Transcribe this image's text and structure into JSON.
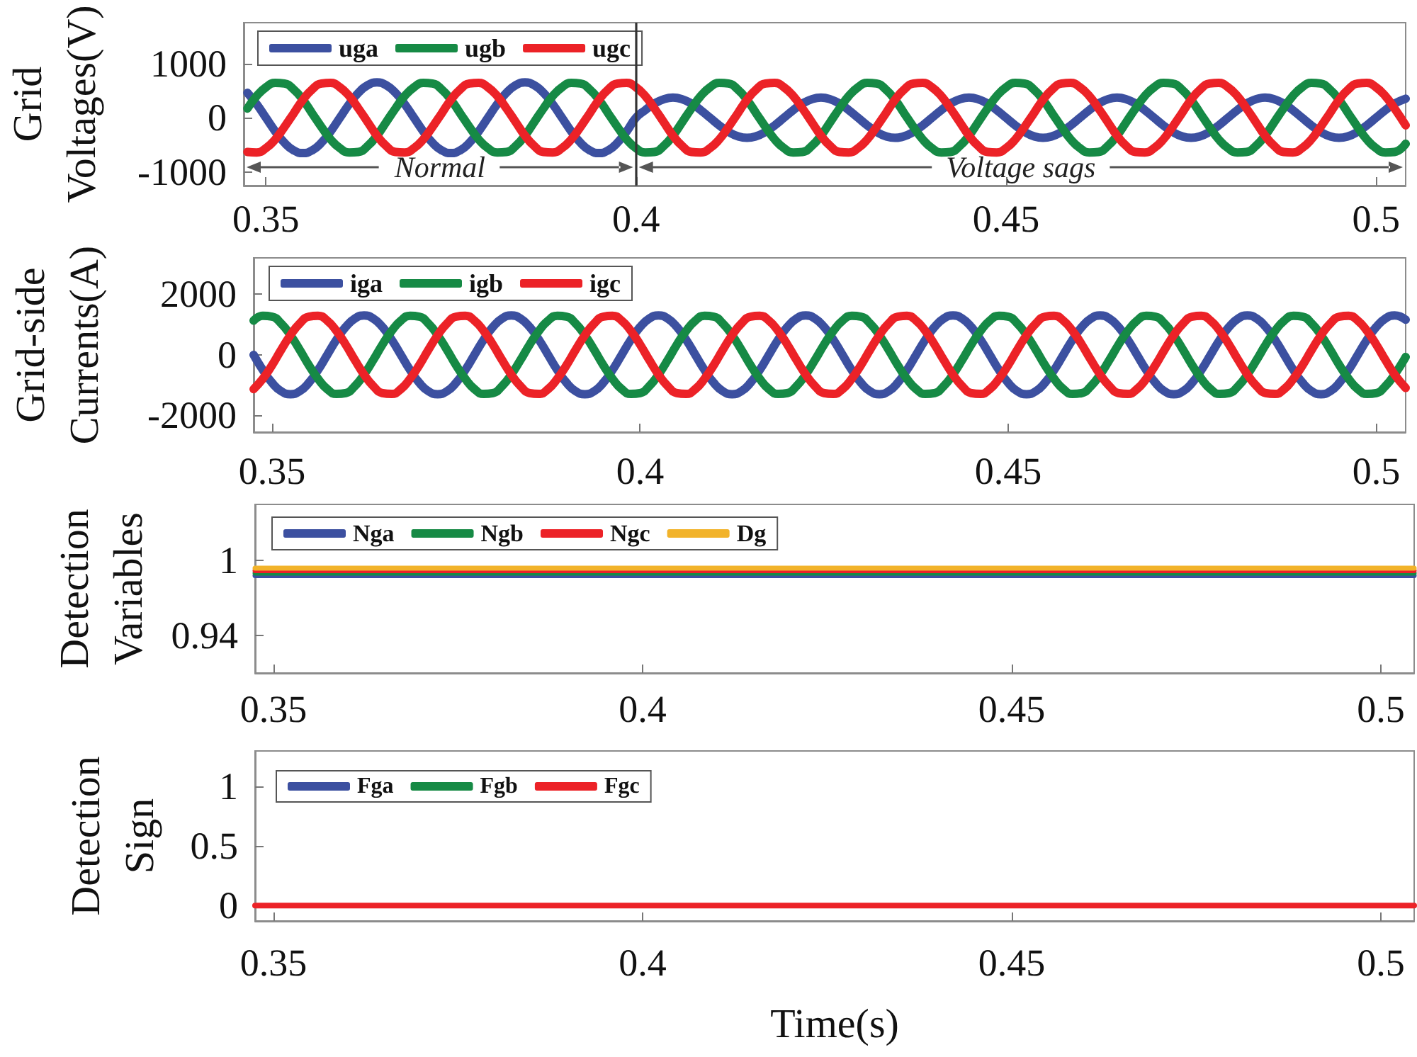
{
  "chart_data": [
    {
      "type": "line",
      "ylabel": "Grid Voltages(V)",
      "legend": "top left",
      "grid": false,
      "marker": "none",
      "line_style": "solid",
      "xlim": [
        0.347,
        0.504
      ],
      "xticks": [
        0.35,
        0.4,
        0.45,
        0.5
      ],
      "ylim": [
        -1250,
        1750
      ],
      "yticks": [
        -1000,
        0,
        1000
      ],
      "ref_lines": [
        {
          "axis": "x",
          "value": 0.4,
          "color": "#333333"
        }
      ],
      "annotations": [
        "Normal",
        "Voltage sags"
      ],
      "x": [
        0.3475,
        0.34875,
        0.35,
        0.35125,
        0.3525,
        0.35375,
        0.355,
        0.35625,
        0.3575,
        0.35875,
        0.36,
        0.36125,
        0.3625,
        0.36375,
        0.365,
        0.36625,
        0.3675,
        0.36875,
        0.37,
        0.37125,
        0.3725,
        0.37375,
        0.375,
        0.37625,
        0.3775,
        0.37875,
        0.38,
        0.38125,
        0.3825,
        0.38375,
        0.385,
        0.38625,
        0.3875,
        0.38875,
        0.39,
        0.39125,
        0.3925,
        0.39375,
        0.395,
        0.39625,
        0.3975,
        0.39875,
        0.4,
        0.40125,
        0.4025,
        0.40375,
        0.405,
        0.40625,
        0.4075,
        0.40875,
        0.41,
        0.41125,
        0.4125,
        0.41375,
        0.415,
        0.41625,
        0.4175,
        0.41875,
        0.42,
        0.42125,
        0.4225,
        0.42375,
        0.425,
        0.42625,
        0.4275,
        0.42875,
        0.43,
        0.43125,
        0.4325,
        0.43375,
        0.435,
        0.43625,
        0.4375,
        0.43875,
        0.44,
        0.44125,
        0.4425,
        0.44375,
        0.445,
        0.44625,
        0.4475,
        0.44875,
        0.45,
        0.45125,
        0.4525,
        0.45375,
        0.455,
        0.45625,
        0.4575,
        0.45875,
        0.46,
        0.46125,
        0.4625,
        0.46375,
        0.465,
        0.46625,
        0.4675,
        0.46875,
        0.47,
        0.47125,
        0.4725,
        0.47375,
        0.475,
        0.47625,
        0.4775,
        0.47875,
        0.48,
        0.48125,
        0.4825,
        0.48375,
        0.485,
        0.48625,
        0.4875,
        0.48875,
        0.49,
        0.49125,
        0.4925,
        0.49375,
        0.495,
        0.49625,
        0.4975,
        0.49875,
        0.5,
        0.50125,
        0.5025,
        0.504
      ],
      "series": [
        {
          "name": "uga",
          "color": "#3c50a0",
          "values": [
            460,
            250,
            0,
            -250,
            -460,
            -600,
            -650,
            -600,
            -460,
            -250,
            0,
            250,
            460,
            600,
            650,
            600,
            460,
            250,
            0,
            -250,
            -460,
            -600,
            -650,
            -600,
            -460,
            -250,
            0,
            250,
            460,
            600,
            650,
            600,
            460,
            250,
            0,
            -250,
            -460,
            -600,
            -650,
            -600,
            -460,
            -250,
            0,
            140,
            260,
            340,
            370,
            340,
            260,
            140,
            0,
            -140,
            -260,
            -340,
            -370,
            -340,
            -260,
            -140,
            0,
            140,
            260,
            340,
            370,
            340,
            260,
            140,
            0,
            -140,
            -260,
            -340,
            -370,
            -340,
            -260,
            -140,
            0,
            140,
            260,
            340,
            370,
            340,
            260,
            140,
            0,
            -140,
            -260,
            -340,
            -370,
            -340,
            -260,
            -140,
            0,
            140,
            260,
            340,
            370,
            340,
            260,
            140,
            0,
            -140,
            -260,
            -340,
            -370,
            -340,
            -260,
            -140,
            0,
            140,
            260,
            340,
            370,
            340,
            260,
            140,
            0,
            -140,
            -260,
            -340,
            -370,
            -340,
            -260,
            -140,
            0,
            140,
            260,
            350
          ]
        },
        {
          "name": "ugb",
          "color": "#168a45",
          "values": [
            170,
            400,
            560,
            640,
            630,
            520,
            330,
            80,
            -170,
            -400,
            -560,
            -640,
            -630,
            -520,
            -330,
            -80,
            170,
            400,
            560,
            640,
            630,
            520,
            330,
            80,
            -170,
            -400,
            -560,
            -640,
            -630,
            -520,
            -330,
            -80,
            170,
            400,
            560,
            640,
            630,
            520,
            330,
            80,
            -170,
            -400,
            -560,
            -640,
            -630,
            -520,
            -330,
            -80,
            170,
            400,
            560,
            640,
            630,
            520,
            330,
            80,
            -170,
            -400,
            -560,
            -640,
            -630,
            -520,
            -330,
            -80,
            170,
            400,
            560,
            640,
            630,
            520,
            330,
            80,
            -170,
            -400,
            -560,
            -640,
            -630,
            -520,
            -330,
            -80,
            170,
            400,
            560,
            640,
            630,
            520,
            330,
            80,
            -170,
            -400,
            -560,
            -640,
            -630,
            -520,
            -330,
            -80,
            170,
            400,
            560,
            640,
            630,
            520,
            330,
            80,
            -170,
            -400,
            -560,
            -640,
            -630,
            -520,
            -330,
            -80,
            170,
            400,
            560,
            640,
            630,
            520,
            330,
            80,
            -170,
            -400,
            -560,
            -640,
            -630,
            -480
          ]
        },
        {
          "name": "ugc",
          "color": "#ec2227",
          "values": [
            -630,
            -640,
            -560,
            -400,
            -170,
            80,
            330,
            520,
            630,
            640,
            560,
            400,
            170,
            -80,
            -330,
            -520,
            -630,
            -640,
            -560,
            -400,
            -170,
            80,
            330,
            520,
            630,
            640,
            560,
            400,
            170,
            -80,
            -330,
            -520,
            -630,
            -640,
            -560,
            -400,
            -170,
            80,
            330,
            520,
            630,
            640,
            560,
            400,
            170,
            -80,
            -330,
            -520,
            -630,
            -640,
            -560,
            -400,
            -170,
            80,
            330,
            520,
            630,
            640,
            560,
            400,
            170,
            -80,
            -330,
            -520,
            -630,
            -640,
            -560,
            -400,
            -170,
            80,
            330,
            520,
            630,
            640,
            560,
            400,
            170,
            -80,
            -330,
            -520,
            -630,
            -640,
            -560,
            -400,
            -170,
            80,
            330,
            520,
            630,
            640,
            560,
            400,
            170,
            -80,
            -330,
            -520,
            -630,
            -640,
            -560,
            -400,
            -170,
            80,
            330,
            520,
            630,
            640,
            560,
            400,
            170,
            -80,
            -330,
            -520,
            -630,
            -640,
            -560,
            -400,
            -170,
            80,
            330,
            520,
            630,
            640,
            560,
            400,
            170,
            -140
          ]
        }
      ]
    },
    {
      "type": "line",
      "ylabel": "Grid-side Currents(A)",
      "legend": "top left",
      "grid": false,
      "marker": "none",
      "line_style": "solid",
      "xlim": [
        0.3475,
        0.504
      ],
      "xticks": [
        0.35,
        0.4,
        0.45,
        0.5
      ],
      "ylim": [
        -2550,
        3200
      ],
      "yticks": [
        -2000,
        0,
        2000
      ],
      "x": [
        0.3475,
        0.34875,
        0.35,
        0.35125,
        0.3525,
        0.35375,
        0.355,
        0.35625,
        0.3575,
        0.35875,
        0.36,
        0.36125,
        0.3625,
        0.36375,
        0.365,
        0.36625,
        0.3675,
        0.36875,
        0.37,
        0.37125,
        0.3725,
        0.37375,
        0.375,
        0.37625,
        0.3775,
        0.37875,
        0.38,
        0.38125,
        0.3825,
        0.38375,
        0.385,
        0.38625,
        0.3875,
        0.38875,
        0.39,
        0.39125,
        0.3925,
        0.39375,
        0.395,
        0.39625,
        0.3975,
        0.39875,
        0.4,
        0.40125,
        0.4025,
        0.40375,
        0.405,
        0.40625,
        0.4075,
        0.40875,
        0.41,
        0.41125,
        0.4125,
        0.41375,
        0.415,
        0.41625,
        0.4175,
        0.41875,
        0.42,
        0.42125,
        0.4225,
        0.42375,
        0.425,
        0.42625,
        0.4275,
        0.42875,
        0.43,
        0.43125,
        0.4325,
        0.43375,
        0.435,
        0.43625,
        0.4375,
        0.43875,
        0.44,
        0.44125,
        0.4425,
        0.44375,
        0.445,
        0.44625,
        0.4475,
        0.44875,
        0.45,
        0.45125,
        0.4525,
        0.45375,
        0.455,
        0.45625,
        0.4575,
        0.45875,
        0.46,
        0.46125,
        0.4625,
        0.46375,
        0.465,
        0.46625,
        0.4675,
        0.46875,
        0.47,
        0.47125,
        0.4725,
        0.47375,
        0.475,
        0.47625,
        0.4775,
        0.47875,
        0.48,
        0.48125,
        0.4825,
        0.48375,
        0.485,
        0.48625,
        0.4875,
        0.48875,
        0.49,
        0.49125,
        0.4925,
        0.49375,
        0.495,
        0.49625,
        0.4975,
        0.49875,
        0.5,
        0.50125,
        0.5025,
        0.504
      ],
      "series": [
        {
          "name": "iga",
          "color": "#3c50a0",
          "values": [
            0,
            -500,
            -920,
            -1200,
            -1300,
            -1200,
            -920,
            -500,
            0,
            500,
            920,
            1200,
            1300,
            1200,
            920,
            500,
            0,
            -500,
            -920,
            -1200,
            -1300,
            -1200,
            -920,
            -500,
            0,
            500,
            920,
            1200,
            1300,
            1200,
            920,
            500,
            0,
            -500,
            -920,
            -1200,
            -1300,
            -1200,
            -920,
            -500,
            0,
            500,
            920,
            1200,
            1300,
            1200,
            920,
            500,
            0,
            -500,
            -920,
            -1200,
            -1300,
            -1200,
            -920,
            -500,
            0,
            500,
            920,
            1200,
            1300,
            1200,
            920,
            500,
            0,
            -500,
            -920,
            -1200,
            -1300,
            -1200,
            -920,
            -500,
            0,
            500,
            920,
            1200,
            1300,
            1200,
            920,
            500,
            0,
            -500,
            -920,
            -1200,
            -1300,
            -1200,
            -920,
            -500,
            0,
            500,
            920,
            1200,
            1300,
            1200,
            920,
            500,
            0,
            -500,
            -920,
            -1200,
            -1300,
            -1200,
            -920,
            -500,
            0,
            500,
            920,
            1200,
            1300,
            1200,
            920,
            500,
            0,
            -500,
            -920,
            -1200,
            -1300,
            -1200,
            -920,
            -500,
            0,
            500,
            920,
            1200,
            1300,
            1160
          ]
        },
        {
          "name": "igb",
          "color": "#168a45",
          "values": [
            1130,
            1290,
            1260,
            1030,
            650,
            170,
            -340,
            -790,
            -1130,
            -1290,
            -1260,
            -1030,
            -650,
            -170,
            340,
            790,
            1130,
            1290,
            1260,
            1030,
            650,
            170,
            -340,
            -790,
            -1130,
            -1290,
            -1260,
            -1030,
            -650,
            -170,
            340,
            790,
            1130,
            1290,
            1260,
            1030,
            650,
            170,
            -340,
            -790,
            -1130,
            -1290,
            -1260,
            -1030,
            -650,
            -170,
            340,
            790,
            1130,
            1290,
            1260,
            1030,
            650,
            170,
            -340,
            -790,
            -1130,
            -1290,
            -1260,
            -1030,
            -650,
            -170,
            340,
            790,
            1130,
            1290,
            1260,
            1030,
            650,
            170,
            -340,
            -790,
            -1130,
            -1290,
            -1260,
            -1030,
            -650,
            -170,
            340,
            790,
            1130,
            1290,
            1260,
            1030,
            650,
            170,
            -340,
            -790,
            -1130,
            -1290,
            -1260,
            -1030,
            -650,
            -170,
            340,
            790,
            1130,
            1290,
            1260,
            1030,
            650,
            170,
            -340,
            -790,
            -1130,
            -1290,
            -1260,
            -1030,
            -650,
            -170,
            340,
            790,
            1130,
            1290,
            1260,
            1030,
            650,
            170,
            -340,
            -790,
            -1130,
            -1290,
            -1260,
            -1030,
            -650,
            -70
          ]
        },
        {
          "name": "igc",
          "color": "#ec2227",
          "values": [
            -1130,
            -790,
            -340,
            170,
            650,
            1030,
            1260,
            1290,
            1130,
            790,
            340,
            -170,
            -650,
            -1030,
            -1260,
            -1290,
            -1130,
            -790,
            -340,
            170,
            650,
            1030,
            1260,
            1290,
            1130,
            790,
            340,
            -170,
            -650,
            -1030,
            -1260,
            -1290,
            -1130,
            -790,
            -340,
            170,
            650,
            1030,
            1260,
            1290,
            1130,
            790,
            340,
            -170,
            -650,
            -1030,
            -1260,
            -1290,
            -1130,
            -790,
            -340,
            170,
            650,
            1030,
            1260,
            1290,
            1130,
            790,
            340,
            -170,
            -650,
            -1030,
            -1260,
            -1290,
            -1130,
            -790,
            -340,
            170,
            650,
            1030,
            1260,
            1290,
            1130,
            790,
            340,
            -170,
            -650,
            -1030,
            -1260,
            -1290,
            -1130,
            -790,
            -340,
            170,
            650,
            1030,
            1260,
            1290,
            1130,
            790,
            340,
            -170,
            -650,
            -1030,
            -1260,
            -1290,
            -1130,
            -790,
            -340,
            170,
            650,
            1030,
            1260,
            1290,
            1130,
            790,
            340,
            -170,
            -650,
            -1030,
            -1260,
            -1290,
            -1130,
            -790,
            -340,
            170,
            650,
            1030,
            1260,
            1290,
            1130,
            790,
            340,
            -170,
            -650,
            -1090
          ]
        }
      ]
    },
    {
      "type": "line",
      "ylabel": "Detection Variables",
      "legend": "top left",
      "grid": false,
      "marker": "none",
      "line_style": "solid",
      "xlim": [
        0.3475,
        0.5045
      ],
      "xticks": [
        0.35,
        0.4,
        0.45,
        0.5
      ],
      "ylim": [
        0.91,
        1.045
      ],
      "yticks": [
        0.94,
        1
      ],
      "x": [
        0.3475,
        0.5045
      ],
      "series": [
        {
          "name": "Nga",
          "color": "#3c50a0",
          "values": [
            0.988,
            0.988
          ]
        },
        {
          "name": "Ngb",
          "color": "#168a45",
          "values": [
            0.99,
            0.99
          ]
        },
        {
          "name": "Ngc",
          "color": "#ec2227",
          "values": [
            0.992,
            0.992
          ]
        },
        {
          "name": "Dg",
          "color": "#f2b32a",
          "values": [
            0.994,
            0.994
          ]
        }
      ]
    },
    {
      "type": "line",
      "ylabel": "Detection Sign",
      "xlabel": "Time(s)",
      "legend": "top left",
      "grid": false,
      "marker": "none",
      "line_style": "solid",
      "xlim": [
        0.3475,
        0.5045
      ],
      "xticks": [
        0.35,
        0.4,
        0.45,
        0.5
      ],
      "ylim": [
        -0.13,
        1.3
      ],
      "yticks": [
        0,
        0.5,
        1
      ],
      "x": [
        0.3475,
        0.5045
      ],
      "series": [
        {
          "name": "Fga",
          "color": "#3c50a0",
          "values": [
            null,
            null
          ]
        },
        {
          "name": "Fgb",
          "color": "#168a45",
          "values": [
            null,
            null
          ]
        },
        {
          "name": "Fgc",
          "color": "#ec2227",
          "values": [
            0,
            0
          ]
        }
      ]
    }
  ]
}
